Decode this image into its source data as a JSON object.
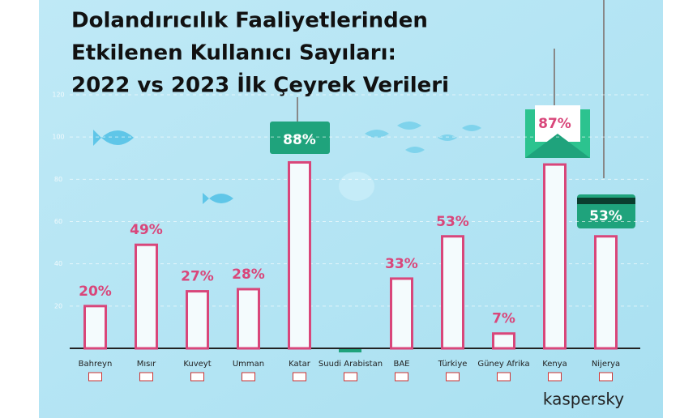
{
  "chart_data": {
    "type": "bar",
    "title": [
      "Dolandırıcılık Faaliyetlerinden",
      "Etkilenen Kullanıcı Sayıları:",
      "2022 vs 2023 İlk Çeyrek Verileri"
    ],
    "categories": [
      "Bahreyn",
      "Mısır",
      "Kuveyt",
      "Umman",
      "Katar",
      "Suudi Arabistan",
      "BAE",
      "Türkiye",
      "Güney Afrika",
      "Kenya",
      "Nijerya"
    ],
    "values": [
      20,
      49,
      27,
      28,
      88,
      0,
      33,
      53,
      7,
      87,
      53
    ],
    "value_labels": [
      "20%",
      "49%",
      "27%",
      "28%",
      "88%",
      null,
      "33%",
      "53%",
      "7%",
      "87%",
      "53%"
    ],
    "color": "#d9467a",
    "ylim": [
      0,
      120
    ],
    "yticks": [
      20,
      40,
      60,
      80,
      100,
      120
    ],
    "grid": true,
    "brand": "kaspersky"
  }
}
